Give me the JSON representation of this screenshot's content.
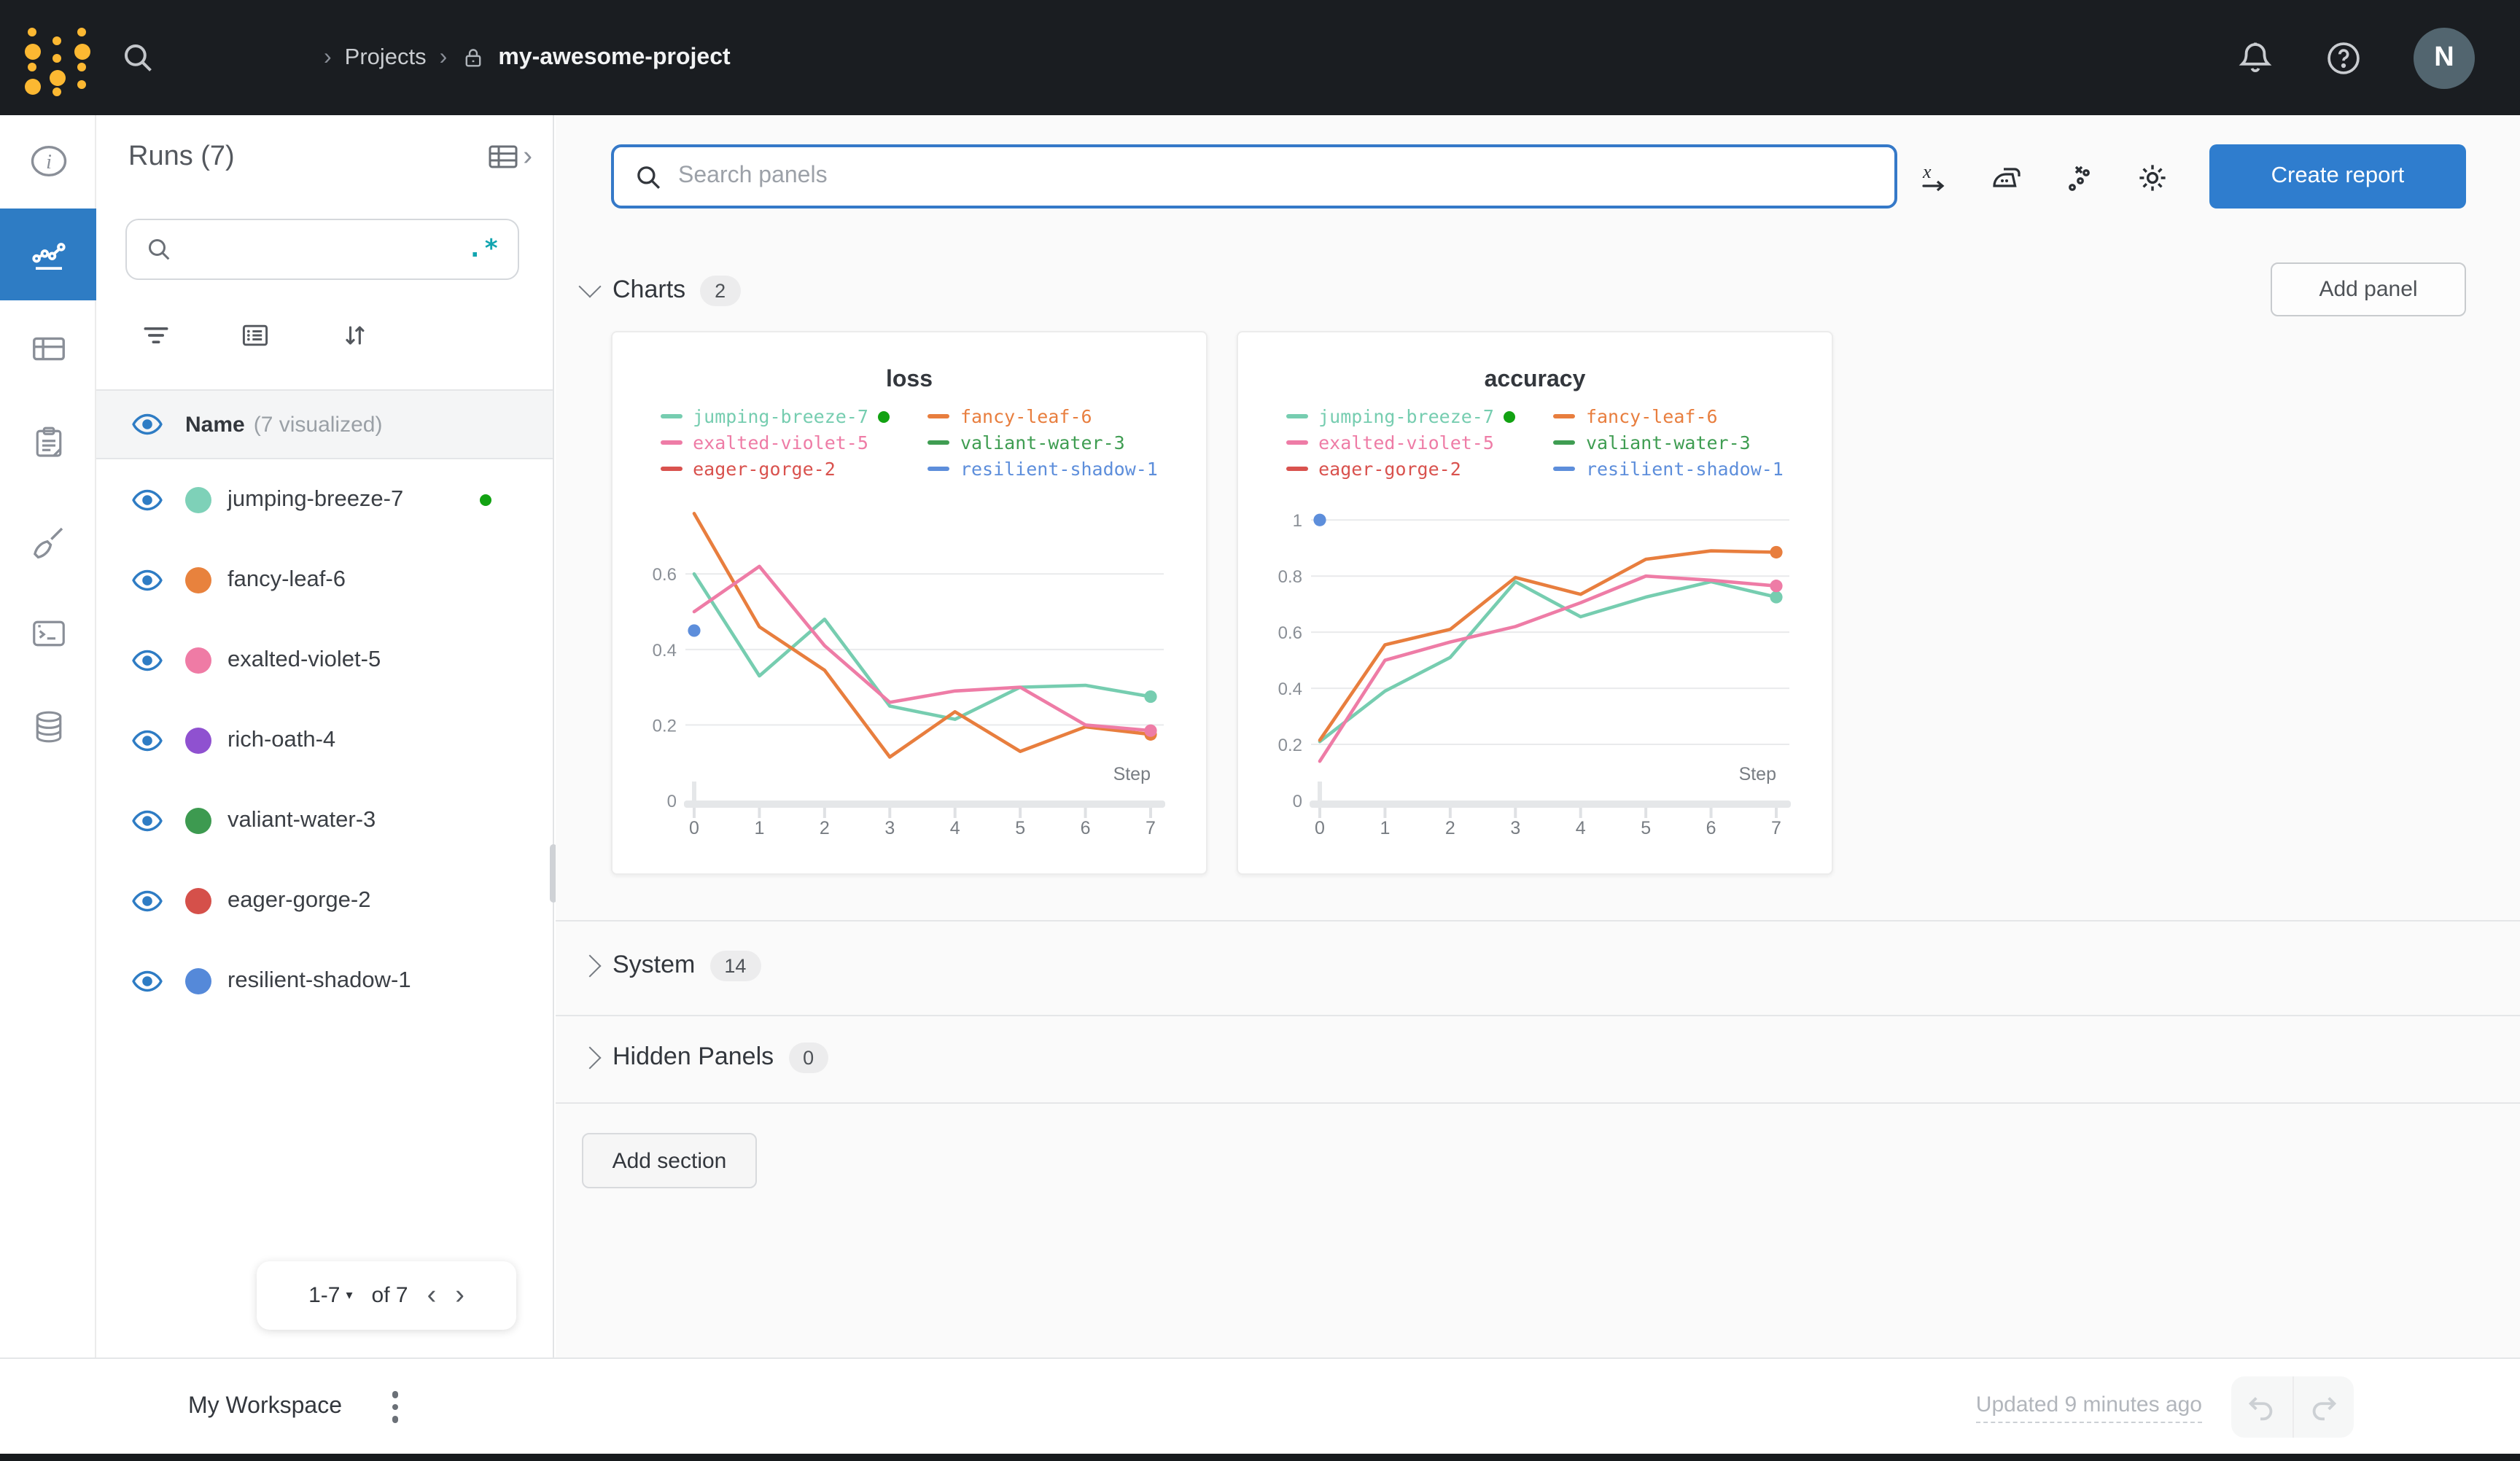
{
  "colors": {
    "accent_blue": "#2e7cc4",
    "topbar_bg": "#1a1d21",
    "logo_yellow": "#fcb832",
    "avatar_bg": "#52656f",
    "running_green": "#12a212",
    "regex_teal": "#12a5b0",
    "create_report_blue": "#2f7dce"
  },
  "topbar": {
    "separator": "›",
    "breadcrumb_projects": "Projects",
    "breadcrumb_project": "my-awesome-project",
    "avatar_initial": "N"
  },
  "runs_panel": {
    "title": "Runs (7)",
    "search_value": "",
    "regex_glyph": ".*",
    "header_name": "Name",
    "header_visualized": "(7 visualized)",
    "runs": [
      {
        "name": "jumping-breeze-7",
        "color": "#7ed1b8",
        "running": true
      },
      {
        "name": "fancy-leaf-6",
        "color": "#e8823d",
        "running": false
      },
      {
        "name": "exalted-violet-5",
        "color": "#ef7ba5",
        "running": false
      },
      {
        "name": "rich-oath-4",
        "color": "#8f51d0",
        "running": false
      },
      {
        "name": "valiant-water-3",
        "color": "#3d9a50",
        "running": false
      },
      {
        "name": "eager-gorge-2",
        "color": "#d5504a",
        "running": false
      },
      {
        "name": "resilient-shadow-1",
        "color": "#5589d9",
        "running": false
      }
    ],
    "pagination_range": "1-7",
    "pagination_caret": "▾",
    "pagination_of": "of 7",
    "prev_glyph": "‹",
    "next_glyph": "›"
  },
  "main": {
    "panel_search_placeholder": "Search panels",
    "create_report_label": "Create report",
    "add_panel_label": "Add panel",
    "add_section_label": "Add section",
    "sections": [
      {
        "label": "Charts",
        "count": "2",
        "expanded": true
      },
      {
        "label": "System",
        "count": "14",
        "expanded": false
      },
      {
        "label": "Hidden Panels",
        "count": "0",
        "expanded": false
      }
    ]
  },
  "footer": {
    "workspace_label": "My Workspace",
    "updated_text": "Updated 9 minutes ago"
  },
  "chart_data": [
    {
      "type": "line",
      "title": "loss",
      "xlabel": "Step",
      "x": [
        0,
        1,
        2,
        3,
        4,
        5,
        6,
        7
      ],
      "ylim": [
        0,
        0.78
      ],
      "yticks": [
        0,
        0.2,
        0.4,
        0.6
      ],
      "grid": true,
      "legend_position": "top",
      "series": [
        {
          "name": "jumping-breeze-7",
          "color": "#76cdb0",
          "running": true,
          "values": [
            0.6,
            0.33,
            0.48,
            0.25,
            0.215,
            0.3,
            0.305,
            0.275
          ],
          "end_dot": true
        },
        {
          "name": "fancy-leaf-6",
          "color": "#e87e3e",
          "running": false,
          "values": [
            0.76,
            0.46,
            0.345,
            0.115,
            0.235,
            0.13,
            0.195,
            0.175
          ],
          "end_dot": true
        },
        {
          "name": "exalted-violet-5",
          "color": "#ee7ca6",
          "running": false,
          "values": [
            0.5,
            0.62,
            0.41,
            0.26,
            0.29,
            0.3,
            0.2,
            0.185
          ],
          "end_dot": true
        },
        {
          "name": "valiant-water-3",
          "color": "#3f9d52",
          "running": false,
          "values": []
        },
        {
          "name": "eager-gorge-2",
          "color": "#d9524e",
          "running": false,
          "values": []
        },
        {
          "name": "resilient-shadow-1",
          "color": "#5d8edb",
          "running": false,
          "values": [],
          "point": [
            0,
            0.45
          ]
        }
      ]
    },
    {
      "type": "line",
      "title": "accuracy",
      "xlabel": "Step",
      "x": [
        0,
        1,
        2,
        3,
        4,
        5,
        6,
        7
      ],
      "ylim": [
        0,
        1.05
      ],
      "yticks": [
        0,
        0.2,
        0.4,
        0.6,
        0.8,
        1
      ],
      "grid": true,
      "legend_position": "top",
      "series": [
        {
          "name": "jumping-breeze-7",
          "color": "#76cdb0",
          "running": true,
          "values": [
            0.21,
            0.39,
            0.51,
            0.78,
            0.655,
            0.725,
            0.78,
            0.725
          ],
          "end_dot": true
        },
        {
          "name": "fancy-leaf-6",
          "color": "#e87e3e",
          "running": false,
          "values": [
            0.215,
            0.555,
            0.61,
            0.795,
            0.735,
            0.86,
            0.89,
            0.885
          ],
          "end_dot": true
        },
        {
          "name": "exalted-violet-5",
          "color": "#ee7ca6",
          "running": false,
          "values": [
            0.14,
            0.5,
            0.565,
            0.62,
            0.705,
            0.8,
            0.785,
            0.765
          ],
          "end_dot": true
        },
        {
          "name": "valiant-water-3",
          "color": "#3f9d52",
          "running": false,
          "values": []
        },
        {
          "name": "eager-gorge-2",
          "color": "#d9524e",
          "running": false,
          "values": []
        },
        {
          "name": "resilient-shadow-1",
          "color": "#5d8edb",
          "running": false,
          "values": [],
          "point": [
            0,
            1.0
          ]
        }
      ]
    }
  ]
}
